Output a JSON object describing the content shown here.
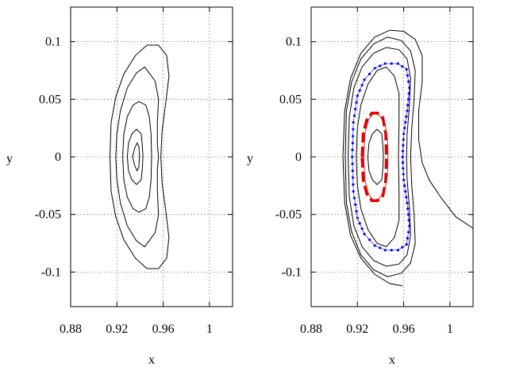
{
  "chart_data": [
    {
      "type": "line",
      "panel": "left",
      "xlabel": "x",
      "ylabel": "y",
      "xlim": [
        0.88,
        1.02
      ],
      "ylim": [
        -0.13,
        0.13
      ],
      "xticks": [
        "0.88",
        "0.92",
        "0.96",
        "1"
      ],
      "yticks": [
        "-0.1",
        "-0.05",
        "0",
        "0.05",
        "0.1"
      ],
      "grid": true,
      "series": [
        {
          "style": "black-contour",
          "points": [
            [
              0.9335,
              0.0
            ],
            [
              0.9355,
              0.008
            ],
            [
              0.9375,
              0.012
            ],
            [
              0.939,
              0.009
            ],
            [
              0.9395,
              0.0
            ],
            [
              0.939,
              -0.009
            ],
            [
              0.9375,
              -0.012
            ],
            [
              0.9355,
              -0.008
            ],
            [
              0.9335,
              0.0
            ]
          ]
        },
        {
          "style": "black-contour",
          "points": [
            [
              0.929,
              0.0
            ],
            [
              0.93,
              0.012
            ],
            [
              0.933,
              0.02
            ],
            [
              0.937,
              0.024
            ],
            [
              0.941,
              0.02
            ],
            [
              0.942,
              0.01
            ],
            [
              0.9425,
              0.0
            ],
            [
              0.942,
              -0.01
            ],
            [
              0.941,
              -0.02
            ],
            [
              0.937,
              -0.024
            ],
            [
              0.933,
              -0.02
            ],
            [
              0.93,
              -0.012
            ],
            [
              0.929,
              0.0
            ]
          ]
        },
        {
          "style": "black-contour",
          "points": [
            [
              0.925,
              0.0
            ],
            [
              0.926,
              0.02
            ],
            [
              0.929,
              0.035
            ],
            [
              0.934,
              0.045
            ],
            [
              0.939,
              0.048
            ],
            [
              0.945,
              0.045
            ],
            [
              0.948,
              0.035
            ],
            [
              0.9495,
              0.02
            ],
            [
              0.95,
              0.0
            ],
            [
              0.9495,
              -0.02
            ],
            [
              0.948,
              -0.035
            ],
            [
              0.945,
              -0.045
            ],
            [
              0.939,
              -0.048
            ],
            [
              0.934,
              -0.045
            ],
            [
              0.929,
              -0.035
            ],
            [
              0.926,
              -0.02
            ],
            [
              0.925,
              0.0
            ]
          ]
        },
        {
          "style": "black-contour",
          "points": [
            [
              0.919,
              0.0
            ],
            [
              0.92,
              0.02
            ],
            [
              0.923,
              0.04
            ],
            [
              0.929,
              0.06
            ],
            [
              0.937,
              0.073
            ],
            [
              0.944,
              0.078
            ],
            [
              0.953,
              0.066
            ],
            [
              0.956,
              0.05
            ],
            [
              0.955,
              0.03
            ],
            [
              0.955,
              0.01
            ],
            [
              0.956,
              0.0
            ],
            [
              0.955,
              -0.01
            ],
            [
              0.955,
              -0.03
            ],
            [
              0.956,
              -0.05
            ],
            [
              0.953,
              -0.066
            ],
            [
              0.944,
              -0.078
            ],
            [
              0.937,
              -0.073
            ],
            [
              0.929,
              -0.06
            ],
            [
              0.923,
              -0.04
            ],
            [
              0.92,
              -0.02
            ],
            [
              0.919,
              0.0
            ]
          ]
        },
        {
          "style": "black-contour",
          "points": [
            [
              0.914,
              0.0
            ],
            [
              0.915,
              0.03
            ],
            [
              0.919,
              0.052
            ],
            [
              0.926,
              0.072
            ],
            [
              0.936,
              0.088
            ],
            [
              0.946,
              0.097
            ],
            [
              0.956,
              0.097
            ],
            [
              0.963,
              0.088
            ],
            [
              0.965,
              0.07
            ],
            [
              0.962,
              0.045
            ],
            [
              0.959,
              0.022
            ],
            [
              0.958,
              0.0
            ],
            [
              0.959,
              -0.022
            ],
            [
              0.962,
              -0.045
            ],
            [
              0.965,
              -0.07
            ],
            [
              0.963,
              -0.088
            ],
            [
              0.956,
              -0.097
            ],
            [
              0.946,
              -0.097
            ],
            [
              0.936,
              -0.088
            ],
            [
              0.926,
              -0.072
            ],
            [
              0.919,
              -0.052
            ],
            [
              0.915,
              -0.03
            ],
            [
              0.914,
              0.0
            ]
          ]
        }
      ]
    },
    {
      "type": "line",
      "panel": "right",
      "xlabel": "x",
      "ylabel": "y",
      "xlim": [
        0.88,
        1.02
      ],
      "ylim": [
        -0.13,
        0.13
      ],
      "xticks": [
        "0.88",
        "0.92",
        "0.96",
        "1"
      ],
      "yticks": [
        "-0.1",
        "-0.05",
        "0",
        "0.05",
        "0.1"
      ],
      "grid": true,
      "series": [
        {
          "style": "black-contour",
          "points": [
            [
              0.929,
              0.0
            ],
            [
              0.93,
              0.012
            ],
            [
              0.933,
              0.02
            ],
            [
              0.937,
              0.024
            ],
            [
              0.941,
              0.02
            ],
            [
              0.942,
              0.01
            ],
            [
              0.9425,
              0.0
            ],
            [
              0.942,
              -0.01
            ],
            [
              0.941,
              -0.02
            ],
            [
              0.937,
              -0.024
            ],
            [
              0.933,
              -0.02
            ],
            [
              0.93,
              -0.012
            ],
            [
              0.929,
              0.0
            ]
          ]
        },
        {
          "style": "red-thin",
          "points": [
            [
              0.9255,
              0.0
            ],
            [
              0.9265,
              0.02
            ],
            [
              0.9295,
              0.032
            ],
            [
              0.934,
              0.038
            ],
            [
              0.939,
              0.036
            ],
            [
              0.944,
              0.028
            ],
            [
              0.946,
              0.015
            ],
            [
              0.9465,
              0.0
            ],
            [
              0.946,
              -0.015
            ],
            [
              0.944,
              -0.028
            ],
            [
              0.939,
              -0.036
            ],
            [
              0.934,
              -0.038
            ],
            [
              0.9295,
              -0.032
            ],
            [
              0.9265,
              -0.02
            ],
            [
              0.9255,
              0.0
            ]
          ]
        },
        {
          "style": "red-dashed",
          "points": [
            [
              0.924,
              0.0
            ],
            [
              0.925,
              0.02
            ],
            [
              0.928,
              0.032
            ],
            [
              0.9325,
              0.038
            ],
            [
              0.9375,
              0.038
            ],
            [
              0.942,
              0.034
            ],
            [
              0.9445,
              0.02
            ],
            [
              0.945,
              0.0
            ],
            [
              0.9445,
              -0.02
            ],
            [
              0.942,
              -0.034
            ],
            [
              0.9375,
              -0.038
            ],
            [
              0.9325,
              -0.038
            ],
            [
              0.928,
              -0.032
            ],
            [
              0.925,
              -0.02
            ],
            [
              0.924,
              0.0
            ]
          ]
        },
        {
          "style": "black-contour",
          "points": [
            [
              0.919,
              0.0
            ],
            [
              0.92,
              0.025
            ],
            [
              0.923,
              0.045
            ],
            [
              0.929,
              0.063
            ],
            [
              0.937,
              0.075
            ],
            [
              0.945,
              0.078
            ],
            [
              0.952,
              0.07
            ],
            [
              0.956,
              0.055
            ],
            [
              0.956,
              0.03
            ],
            [
              0.9555,
              0.0
            ],
            [
              0.956,
              -0.03
            ],
            [
              0.956,
              -0.055
            ],
            [
              0.952,
              -0.07
            ],
            [
              0.945,
              -0.078
            ],
            [
              0.937,
              -0.075
            ],
            [
              0.929,
              -0.063
            ],
            [
              0.923,
              -0.045
            ],
            [
              0.92,
              -0.025
            ],
            [
              0.919,
              0.0
            ]
          ]
        },
        {
          "style": "blue-dotted",
          "points": [
            [
              0.9155,
              0.0
            ],
            [
              0.9165,
              0.03
            ],
            [
              0.92,
              0.053
            ],
            [
              0.926,
              0.067
            ],
            [
              0.935,
              0.077
            ],
            [
              0.944,
              0.081
            ],
            [
              0.955,
              0.081
            ],
            [
              0.9625,
              0.076
            ],
            [
              0.965,
              0.06
            ],
            [
              0.963,
              0.04
            ],
            [
              0.96,
              0.02
            ],
            [
              0.959,
              0.0
            ],
            [
              0.96,
              -0.02
            ],
            [
              0.963,
              -0.04
            ],
            [
              0.965,
              -0.06
            ],
            [
              0.9625,
              -0.076
            ],
            [
              0.955,
              -0.081
            ],
            [
              0.944,
              -0.081
            ],
            [
              0.935,
              -0.077
            ],
            [
              0.926,
              -0.067
            ],
            [
              0.92,
              -0.053
            ],
            [
              0.9165,
              -0.03
            ],
            [
              0.9155,
              0.0
            ]
          ]
        },
        {
          "style": "black-contour",
          "points": [
            [
              0.912,
              0.0
            ],
            [
              0.913,
              0.035
            ],
            [
              0.917,
              0.06
            ],
            [
              0.924,
              0.078
            ],
            [
              0.934,
              0.09
            ],
            [
              0.945,
              0.095
            ],
            [
              0.956,
              0.093
            ],
            [
              0.963,
              0.085
            ],
            [
              0.966,
              0.068
            ],
            [
              0.965,
              0.045
            ],
            [
              0.963,
              0.02
            ],
            [
              0.9625,
              0.0
            ],
            [
              0.963,
              -0.02
            ],
            [
              0.965,
              -0.045
            ],
            [
              0.966,
              -0.068
            ],
            [
              0.963,
              -0.085
            ],
            [
              0.956,
              -0.093
            ],
            [
              0.945,
              -0.095
            ],
            [
              0.934,
              -0.09
            ],
            [
              0.924,
              -0.078
            ],
            [
              0.917,
              -0.06
            ],
            [
              0.913,
              -0.035
            ],
            [
              0.912,
              0.0
            ]
          ]
        },
        {
          "style": "black-contour",
          "points": [
            [
              0.9095,
              0.0
            ],
            [
              0.9105,
              0.04
            ],
            [
              0.915,
              0.065
            ],
            [
              0.923,
              0.085
            ],
            [
              0.934,
              0.098
            ],
            [
              0.946,
              0.104
            ],
            [
              0.958,
              0.101
            ],
            [
              0.966,
              0.092
            ],
            [
              0.97,
              0.075
            ],
            [
              0.969,
              0.05
            ],
            [
              0.967,
              0.025
            ],
            [
              0.966,
              0.0
            ],
            [
              0.967,
              -0.025
            ],
            [
              0.969,
              -0.05
            ],
            [
              0.97,
              -0.075
            ],
            [
              0.966,
              -0.092
            ],
            [
              0.958,
              -0.101
            ],
            [
              0.946,
              -0.104
            ],
            [
              0.934,
              -0.098
            ],
            [
              0.923,
              -0.085
            ],
            [
              0.915,
              -0.065
            ],
            [
              0.9105,
              -0.04
            ],
            [
              0.9095,
              0.0
            ]
          ]
        },
        {
          "style": "black-contour",
          "points": [
            [
              0.959,
              -0.112
            ],
            [
              0.948,
              -0.11
            ],
            [
              0.935,
              -0.102
            ],
            [
              0.923,
              -0.088
            ],
            [
              0.914,
              -0.068
            ],
            [
              0.909,
              -0.04
            ],
            [
              0.9075,
              0.0
            ],
            [
              0.909,
              0.04
            ],
            [
              0.914,
              0.068
            ],
            [
              0.923,
              0.09
            ],
            [
              0.935,
              0.104
            ],
            [
              0.948,
              0.11
            ],
            [
              0.96,
              0.109
            ],
            [
              0.97,
              0.102
            ],
            [
              0.976,
              0.088
            ],
            [
              0.976,
              0.065
            ],
            [
              0.973,
              0.04
            ],
            [
              0.973,
              0.015
            ],
            [
              0.976,
              -0.005
            ],
            [
              0.982,
              -0.02
            ],
            [
              0.992,
              -0.035
            ],
            [
              1.005,
              -0.052
            ],
            [
              1.02,
              -0.062
            ]
          ]
        }
      ]
    }
  ]
}
